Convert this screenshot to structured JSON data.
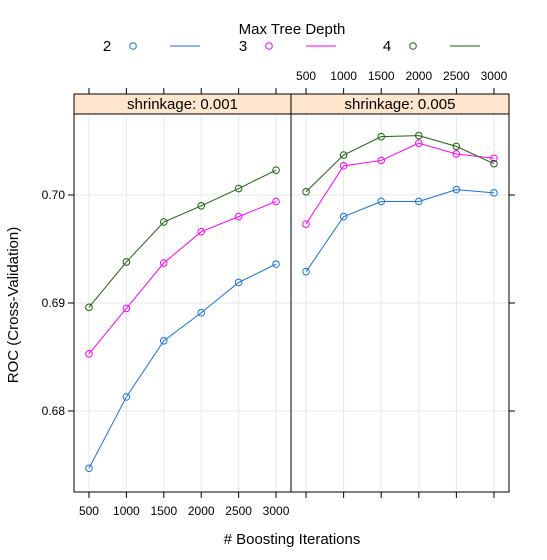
{
  "chart_data": {
    "type": "line",
    "legend": {
      "title": "Max Tree Depth",
      "placement": "top",
      "entries": [
        {
          "label": "2",
          "color": "#1b6fdb"
        },
        {
          "label": "3",
          "color": "#ff00ff"
        },
        {
          "label": "4",
          "color": "#1c5f0e"
        }
      ]
    },
    "xlabel": "# Boosting Iterations",
    "ylabel": "ROC (Cross-Validation)",
    "x": [
      500,
      1000,
      1500,
      2000,
      2500,
      3000
    ],
    "x_ticks": [
      "500",
      "1000",
      "1500",
      "2000",
      "2500",
      "3000"
    ],
    "y_ticks": [
      "0.68",
      "0.69",
      "0.70"
    ],
    "y_tick_values": [
      0.68,
      0.69,
      0.7
    ],
    "xlim": [
      300,
      3200
    ],
    "ylim": [
      0.6725,
      0.7075
    ],
    "grid": true,
    "panels": [
      {
        "strip": "shrinkage: 0.001",
        "series": [
          {
            "name": "2",
            "values": [
              0.6747,
              0.6813,
              0.6865,
              0.6891,
              0.6919,
              0.6936
            ]
          },
          {
            "name": "3",
            "values": [
              0.6853,
              0.6895,
              0.6937,
              0.6966,
              0.698,
              0.6994
            ]
          },
          {
            "name": "4",
            "values": [
              0.6896,
              0.6938,
              0.6975,
              0.699,
              0.7006,
              0.7023
            ]
          }
        ]
      },
      {
        "strip": "shrinkage: 0.005",
        "series": [
          {
            "name": "2",
            "values": [
              0.6929,
              0.698,
              0.6994,
              0.6994,
              0.7005,
              0.7002
            ]
          },
          {
            "name": "3",
            "values": [
              0.6973,
              0.7027,
              0.7032,
              0.7048,
              0.7038,
              0.7034
            ]
          },
          {
            "name": "4",
            "values": [
              0.7003,
              0.7037,
              0.7054,
              0.7055,
              0.7045,
              0.7029
            ]
          }
        ]
      }
    ]
  }
}
